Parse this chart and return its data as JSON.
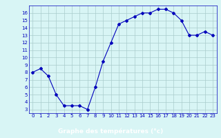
{
  "x": [
    0,
    1,
    2,
    3,
    4,
    5,
    6,
    7,
    8,
    9,
    10,
    11,
    12,
    13,
    14,
    15,
    16,
    17,
    18,
    19,
    20,
    21,
    22,
    23
  ],
  "y": [
    8,
    8.5,
    7.5,
    5,
    3.5,
    3.5,
    3.5,
    3,
    6,
    9.5,
    12,
    14.5,
    15,
    15.5,
    16,
    16,
    16.5,
    16.5,
    16,
    15,
    13,
    13,
    13.5,
    13
  ],
  "line_color": "#0000bb",
  "marker": "D",
  "marker_size": 2.0,
  "bg_color": "#d8f5f5",
  "grid_color": "#aacccc",
  "xlabel": "Graphe des températures (°c)",
  "ylim_min": 2.5,
  "ylim_max": 17.0,
  "xlim_min": -0.5,
  "xlim_max": 23.5,
  "yticks": [
    3,
    4,
    5,
    6,
    7,
    8,
    9,
    10,
    11,
    12,
    13,
    14,
    15,
    16
  ],
  "xticks": [
    0,
    1,
    2,
    3,
    4,
    5,
    6,
    7,
    8,
    9,
    10,
    11,
    12,
    13,
    14,
    15,
    16,
    17,
    18,
    19,
    20,
    21,
    22,
    23
  ],
  "tick_fontsize": 5.0,
  "xlabel_fontsize": 6.5,
  "xlabel_color": "white",
  "xlabel_bg_color": "#0000bb"
}
